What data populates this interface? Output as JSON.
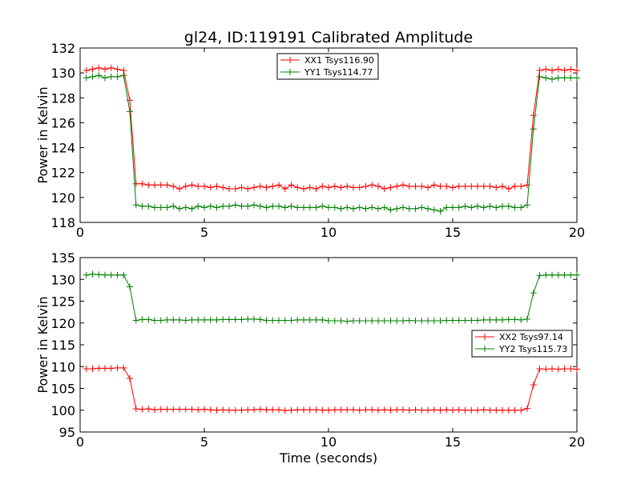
{
  "colors": {
    "red": "#ff0000",
    "green": "#007f00"
  },
  "chart_data": [
    {
      "type": "line",
      "title": "gl24, ID:119191 Calibrated Amplitude",
      "xlabel": "",
      "ylabel": "Power in Kelvin",
      "xlim": [
        0,
        20
      ],
      "ylim": [
        118,
        132
      ],
      "xticks": [
        "0",
        "5",
        "10",
        "15",
        "20"
      ],
      "yticks": [
        "118",
        "120",
        "122",
        "124",
        "126",
        "128",
        "130",
        "132"
      ],
      "legend_position": "upper center",
      "grid": false,
      "x": [
        0.25,
        0.5,
        0.75,
        1.0,
        1.25,
        1.5,
        1.75,
        2.0,
        2.25,
        2.5,
        2.75,
        3.0,
        3.25,
        3.5,
        3.75,
        4.0,
        4.25,
        4.5,
        4.75,
        5.0,
        5.25,
        5.5,
        5.75,
        6.0,
        6.25,
        6.5,
        6.75,
        7.0,
        7.25,
        7.5,
        7.75,
        8.0,
        8.25,
        8.5,
        8.75,
        9.0,
        9.25,
        9.5,
        9.75,
        10.0,
        10.25,
        10.5,
        10.75,
        11.0,
        11.25,
        11.5,
        11.75,
        12.0,
        12.25,
        12.5,
        12.75,
        13.0,
        13.25,
        13.5,
        13.75,
        14.0,
        14.25,
        14.5,
        14.75,
        15.0,
        15.25,
        15.5,
        15.75,
        16.0,
        16.25,
        16.5,
        16.75,
        17.0,
        17.25,
        17.5,
        17.75,
        18.0,
        18.25,
        18.5,
        18.75,
        19.0,
        19.25,
        19.5,
        19.75,
        20.0
      ],
      "series": [
        {
          "name": "XX1 Tsys116.90",
          "color": "red",
          "values": [
            130.2,
            130.3,
            130.4,
            130.3,
            130.4,
            130.3,
            130.2,
            127.8,
            121.1,
            121.1,
            121.0,
            121.0,
            121.0,
            121.0,
            120.9,
            120.7,
            120.9,
            121.0,
            120.9,
            120.9,
            120.8,
            120.9,
            120.8,
            120.7,
            120.7,
            120.8,
            120.7,
            120.8,
            120.9,
            120.8,
            120.9,
            121.0,
            120.7,
            121.0,
            120.8,
            120.7,
            120.8,
            120.7,
            120.9,
            120.8,
            120.9,
            120.8,
            120.9,
            120.8,
            120.8,
            120.9,
            121.0,
            120.9,
            120.7,
            120.8,
            120.9,
            121.0,
            120.9,
            120.9,
            120.9,
            120.8,
            121.0,
            120.9,
            120.9,
            120.8,
            120.9,
            120.9,
            120.9,
            120.9,
            120.9,
            120.9,
            120.8,
            120.9,
            120.7,
            120.9,
            120.9,
            121.0,
            126.6,
            130.2,
            130.3,
            130.2,
            130.3,
            130.2,
            130.3,
            130.2
          ]
        },
        {
          "name": "YY1 Tsys114.77",
          "color": "green",
          "values": [
            129.6,
            129.7,
            129.8,
            129.6,
            129.7,
            129.7,
            129.8,
            126.9,
            119.4,
            119.3,
            119.3,
            119.2,
            119.2,
            119.2,
            119.3,
            119.1,
            119.2,
            119.1,
            119.3,
            119.2,
            119.3,
            119.2,
            119.3,
            119.3,
            119.4,
            119.3,
            119.3,
            119.4,
            119.3,
            119.2,
            119.3,
            119.3,
            119.2,
            119.3,
            119.2,
            119.2,
            119.2,
            119.2,
            119.3,
            119.2,
            119.2,
            119.1,
            119.2,
            119.1,
            119.2,
            119.1,
            119.2,
            119.1,
            119.2,
            119.0,
            119.1,
            119.2,
            119.1,
            119.1,
            119.2,
            119.1,
            119.0,
            118.9,
            119.2,
            119.2,
            119.2,
            119.3,
            119.2,
            119.3,
            119.2,
            119.3,
            119.2,
            119.3,
            119.3,
            119.2,
            119.2,
            119.4,
            125.5,
            129.7,
            129.6,
            129.5,
            129.6,
            129.6,
            129.6,
            129.6
          ]
        }
      ]
    },
    {
      "type": "line",
      "title": "",
      "xlabel": "Time (seconds)",
      "ylabel": "Power in Kelvin",
      "xlim": [
        0,
        20
      ],
      "ylim": [
        95,
        135
      ],
      "xticks": [
        "0",
        "5",
        "10",
        "15",
        "20"
      ],
      "yticks": [
        "95",
        "100",
        "105",
        "110",
        "115",
        "120",
        "125",
        "130",
        "135"
      ],
      "legend_position": "center right",
      "grid": false,
      "x": [
        0.25,
        0.5,
        0.75,
        1.0,
        1.25,
        1.5,
        1.75,
        2.0,
        2.25,
        2.5,
        2.75,
        3.0,
        3.25,
        3.5,
        3.75,
        4.0,
        4.25,
        4.5,
        4.75,
        5.0,
        5.25,
        5.5,
        5.75,
        6.0,
        6.25,
        6.5,
        6.75,
        7.0,
        7.25,
        7.5,
        7.75,
        8.0,
        8.25,
        8.5,
        8.75,
        9.0,
        9.25,
        9.5,
        9.75,
        10.0,
        10.25,
        10.5,
        10.75,
        11.0,
        11.25,
        11.5,
        11.75,
        12.0,
        12.25,
        12.5,
        12.75,
        13.0,
        13.25,
        13.5,
        13.75,
        14.0,
        14.25,
        14.5,
        14.75,
        15.0,
        15.25,
        15.5,
        15.75,
        16.0,
        16.25,
        16.5,
        16.75,
        17.0,
        17.25,
        17.5,
        17.75,
        18.0,
        18.25,
        18.5,
        18.75,
        19.0,
        19.25,
        19.5,
        19.75,
        20.0
      ],
      "series": [
        {
          "name": "XX2 Tsys97.14",
          "color": "red",
          "values": [
            109.5,
            109.5,
            109.6,
            109.6,
            109.6,
            109.7,
            109.7,
            107.3,
            100.3,
            100.2,
            100.3,
            100.1,
            100.2,
            100.2,
            100.2,
            100.2,
            100.2,
            100.2,
            100.1,
            100.2,
            100.1,
            100.0,
            100.1,
            100.0,
            100.0,
            100.0,
            100.1,
            100.1,
            100.2,
            100.1,
            100.1,
            100.1,
            99.9,
            100.0,
            100.1,
            100.1,
            100.1,
            100.1,
            100.0,
            100.0,
            100.1,
            100.1,
            100.1,
            100.1,
            100.0,
            100.1,
            100.1,
            100.0,
            100.1,
            100.0,
            100.1,
            100.1,
            100.0,
            100.1,
            100.0,
            100.0,
            100.1,
            100.0,
            100.1,
            100.0,
            100.1,
            100.0,
            100.0,
            100.0,
            100.1,
            100.0,
            100.0,
            100.0,
            100.0,
            100.0,
            100.0,
            100.4,
            105.8,
            109.5,
            109.4,
            109.5,
            109.4,
            109.5,
            109.5,
            109.4
          ]
        },
        {
          "name": "YY2 Tsys115.73",
          "color": "green",
          "values": [
            131.0,
            131.2,
            131.1,
            131.0,
            131.0,
            131.0,
            131.0,
            128.3,
            120.6,
            120.8,
            120.8,
            120.6,
            120.6,
            120.7,
            120.7,
            120.7,
            120.6,
            120.7,
            120.7,
            120.7,
            120.7,
            120.7,
            120.8,
            120.8,
            120.8,
            120.8,
            120.9,
            120.9,
            120.8,
            120.6,
            120.6,
            120.6,
            120.6,
            120.6,
            120.7,
            120.7,
            120.7,
            120.7,
            120.7,
            120.5,
            120.5,
            120.5,
            120.4,
            120.5,
            120.5,
            120.5,
            120.5,
            120.5,
            120.5,
            120.5,
            120.5,
            120.5,
            120.6,
            120.5,
            120.5,
            120.5,
            120.5,
            120.5,
            120.6,
            120.6,
            120.6,
            120.6,
            120.6,
            120.6,
            120.7,
            120.7,
            120.7,
            120.7,
            120.8,
            120.8,
            120.7,
            120.9,
            126.9,
            130.9,
            131.0,
            131.0,
            131.0,
            131.0,
            131.0,
            131.0
          ]
        }
      ]
    }
  ]
}
